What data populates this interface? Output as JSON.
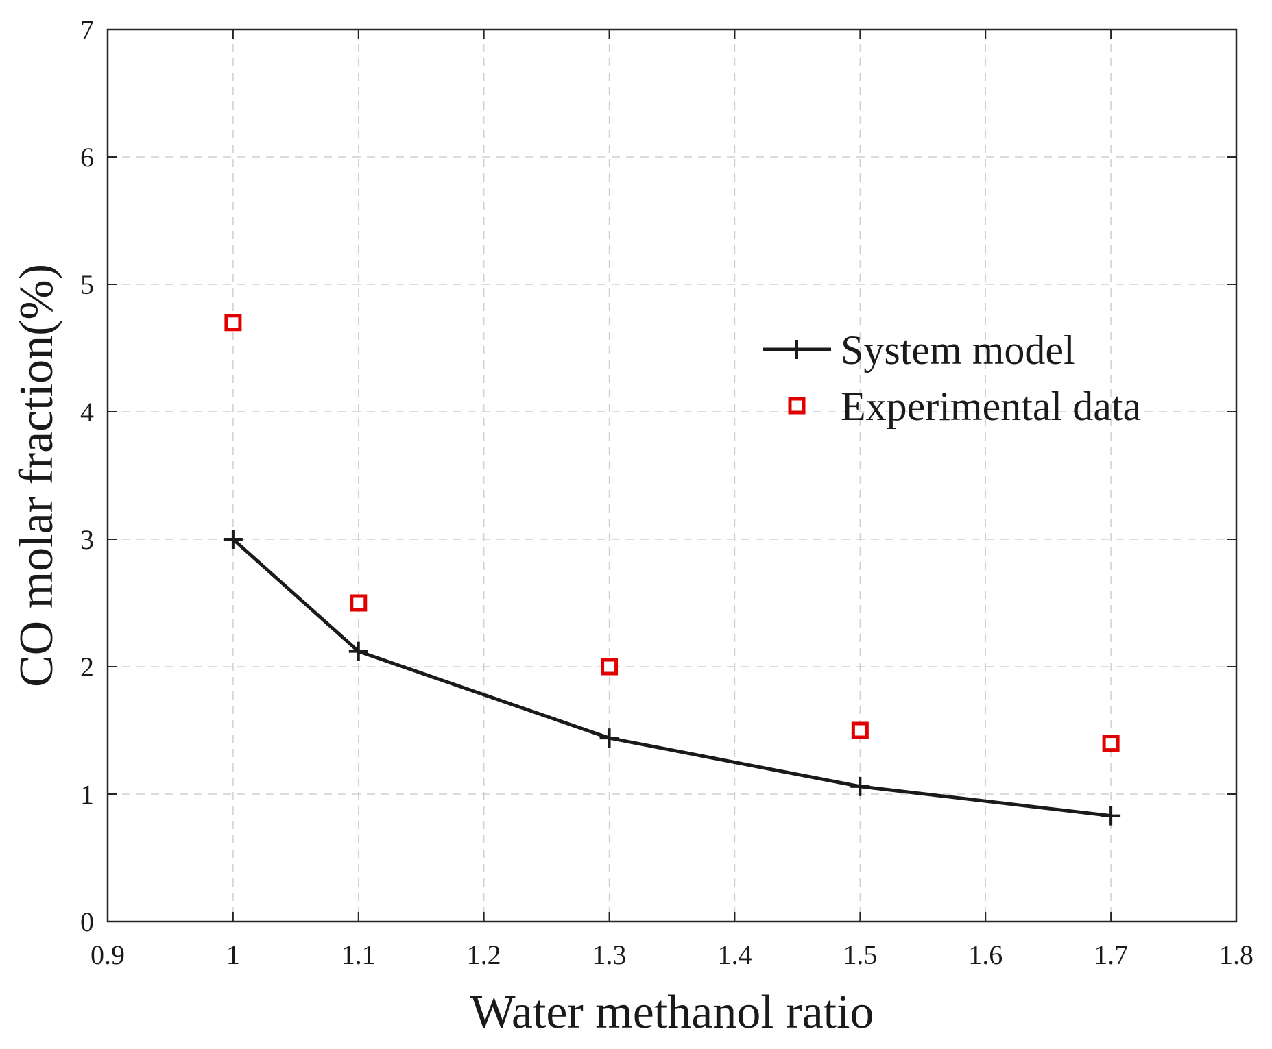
{
  "chart_data": {
    "type": "line",
    "title": "",
    "xlabel": "Water methanol ratio",
    "ylabel": "CO molar fraction(%)",
    "xlim": [
      0.9,
      1.8
    ],
    "ylim": [
      0,
      7
    ],
    "xticks": [
      "0.9",
      "1",
      "1.1",
      "1.2",
      "1.3",
      "1.4",
      "1.5",
      "1.6",
      "1.7",
      "1.8"
    ],
    "yticks": [
      "0",
      "1",
      "2",
      "3",
      "4",
      "5",
      "6",
      "7"
    ],
    "grid": true,
    "legend_position": "upper-right",
    "series": [
      {
        "name": "System model",
        "style": "line-plus-marker",
        "color": "#1a1a1a",
        "x": [
          1.0,
          1.1,
          1.3,
          1.5,
          1.7
        ],
        "y": [
          3.0,
          2.12,
          1.44,
          1.06,
          0.83
        ]
      },
      {
        "name": "Experimental data",
        "style": "square-marker",
        "color": "#e00000",
        "x": [
          1.0,
          1.1,
          1.3,
          1.5,
          1.7
        ],
        "y": [
          4.7,
          2.5,
          2.0,
          1.5,
          1.4
        ]
      }
    ]
  }
}
